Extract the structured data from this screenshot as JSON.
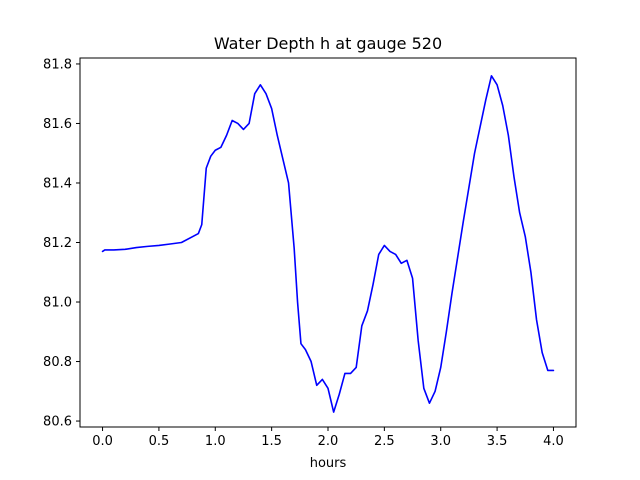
{
  "chart_data": {
    "type": "line",
    "title": "Water Depth h at gauge 520",
    "xlabel": "hours",
    "ylabel": "",
    "xlim": [
      -0.2,
      4.2
    ],
    "ylim": [
      80.58,
      81.82
    ],
    "x_ticks": [
      0.0,
      0.5,
      1.0,
      1.5,
      2.0,
      2.5,
      3.0,
      3.5,
      4.0
    ],
    "x_tick_labels": [
      "0.0",
      "0.5",
      "1.0",
      "1.5",
      "2.0",
      "2.5",
      "3.0",
      "3.5",
      "4.0"
    ],
    "y_ticks": [
      80.6,
      80.8,
      81.0,
      81.2,
      81.4,
      81.6,
      81.8
    ],
    "y_tick_labels": [
      "80.6",
      "80.8",
      "81.0",
      "81.2",
      "81.4",
      "81.6",
      "81.8"
    ],
    "grid": false,
    "legend": "none",
    "series": [
      {
        "color": "#0000ff",
        "x": [
          0.0,
          0.02,
          0.1,
          0.2,
          0.3,
          0.4,
          0.5,
          0.6,
          0.7,
          0.8,
          0.85,
          0.88,
          0.92,
          0.96,
          1.0,
          1.05,
          1.1,
          1.15,
          1.2,
          1.25,
          1.3,
          1.35,
          1.4,
          1.45,
          1.5,
          1.55,
          1.6,
          1.65,
          1.7,
          1.73,
          1.76,
          1.8,
          1.85,
          1.9,
          1.95,
          2.0,
          2.05,
          2.1,
          2.15,
          2.2,
          2.25,
          2.3,
          2.35,
          2.4,
          2.45,
          2.5,
          2.55,
          2.6,
          2.65,
          2.7,
          2.75,
          2.8,
          2.85,
          2.9,
          2.95,
          3.0,
          3.05,
          3.1,
          3.2,
          3.3,
          3.4,
          3.45,
          3.5,
          3.55,
          3.6,
          3.65,
          3.7,
          3.75,
          3.8,
          3.85,
          3.9,
          3.95,
          4.0
        ],
        "y": [
          81.17,
          81.175,
          81.175,
          81.177,
          81.183,
          81.187,
          81.19,
          81.195,
          81.2,
          81.22,
          81.23,
          81.26,
          81.45,
          81.49,
          81.51,
          81.52,
          81.56,
          81.61,
          81.6,
          81.58,
          81.6,
          81.7,
          81.73,
          81.7,
          81.65,
          81.56,
          81.48,
          81.4,
          81.18,
          81.0,
          80.86,
          80.84,
          80.8,
          80.72,
          80.74,
          80.71,
          80.63,
          80.69,
          80.76,
          80.76,
          80.78,
          80.92,
          80.97,
          81.06,
          81.16,
          81.19,
          81.17,
          81.16,
          81.13,
          81.14,
          81.08,
          80.87,
          80.71,
          80.66,
          80.7,
          80.78,
          80.9,
          81.03,
          81.27,
          81.5,
          81.68,
          81.76,
          81.73,
          81.66,
          81.56,
          81.42,
          81.3,
          81.22,
          81.1,
          80.94,
          80.83,
          80.77,
          80.77
        ]
      }
    ]
  }
}
